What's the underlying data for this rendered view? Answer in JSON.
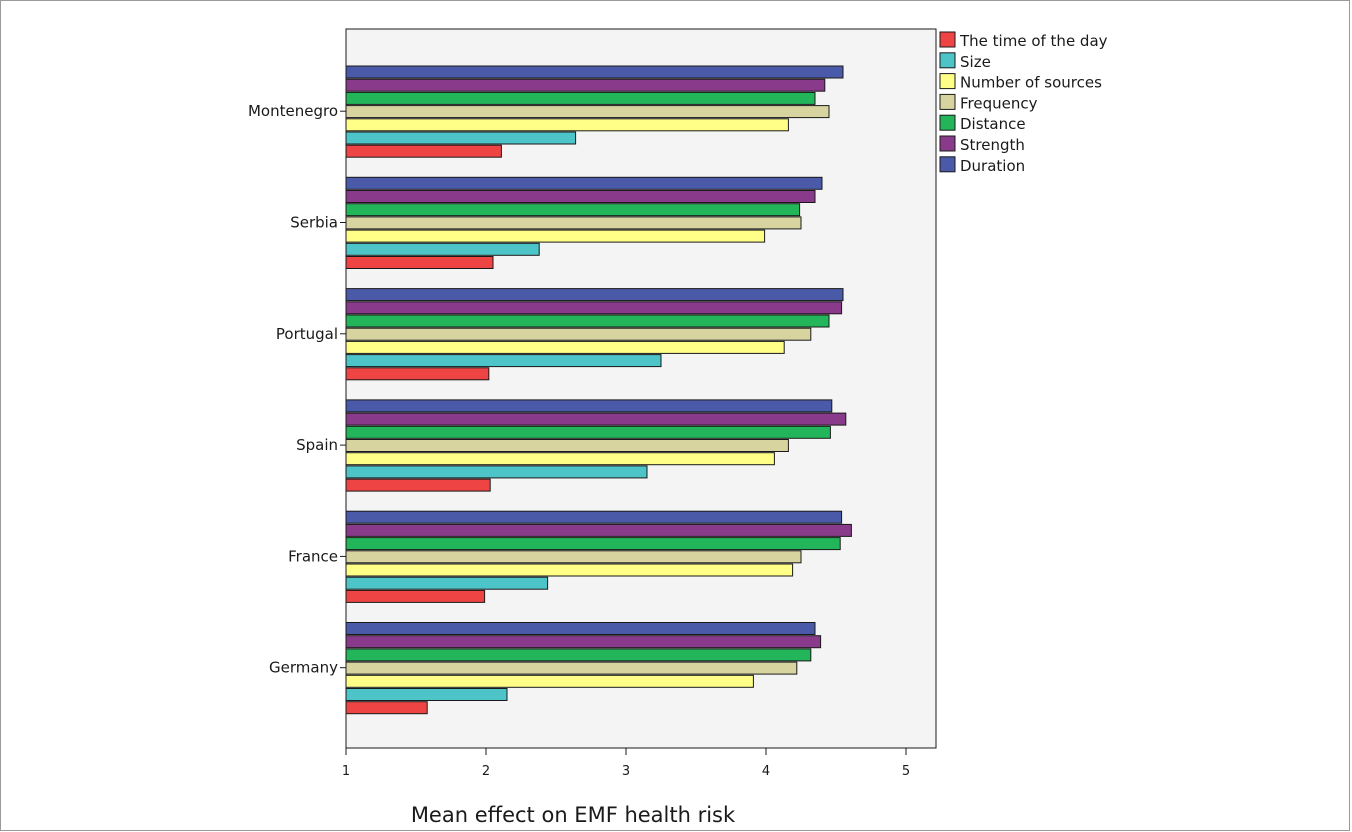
{
  "chart_data": {
    "type": "bar",
    "orientation": "horizontal",
    "title": "",
    "xlabel": "Mean effect on EMF health risk",
    "ylabel": "",
    "xlim": [
      1,
      5.2
    ],
    "xticks": [
      1,
      2,
      3,
      4,
      5
    ],
    "grid": false,
    "legend_position": "top-right outside plot",
    "categories": [
      "Montenegro",
      "Serbia",
      "Portugal",
      "Spain",
      "France",
      "Germany"
    ],
    "series": [
      {
        "name": "The time of the day",
        "color": "#ee4444",
        "values": [
          2.11,
          2.05,
          2.02,
          2.03,
          1.99,
          1.58
        ]
      },
      {
        "name": "Size",
        "color": "#4cc4c8",
        "values": [
          2.64,
          2.38,
          3.25,
          3.15,
          2.44,
          2.15
        ]
      },
      {
        "name": "Number of sources",
        "color": "#ffff88",
        "values": [
          4.16,
          3.99,
          4.13,
          4.06,
          4.19,
          3.91
        ]
      },
      {
        "name": "Frequency",
        "color": "#d8d4a0",
        "values": [
          4.45,
          4.25,
          4.32,
          4.16,
          4.25,
          4.22
        ]
      },
      {
        "name": "Distance",
        "color": "#22b55a",
        "values": [
          4.35,
          4.24,
          4.45,
          4.46,
          4.53,
          4.32
        ]
      },
      {
        "name": "Strength",
        "color": "#8a3a8a",
        "values": [
          4.42,
          4.35,
          4.54,
          4.57,
          4.61,
          4.39
        ]
      },
      {
        "name": "Duration",
        "color": "#4a5aa8",
        "values": [
          4.55,
          4.4,
          4.55,
          4.47,
          4.54,
          4.35
        ]
      }
    ]
  },
  "colors": {
    "plot_background": "#f4f4f4",
    "bar_outline": "#1a1a1a"
  }
}
